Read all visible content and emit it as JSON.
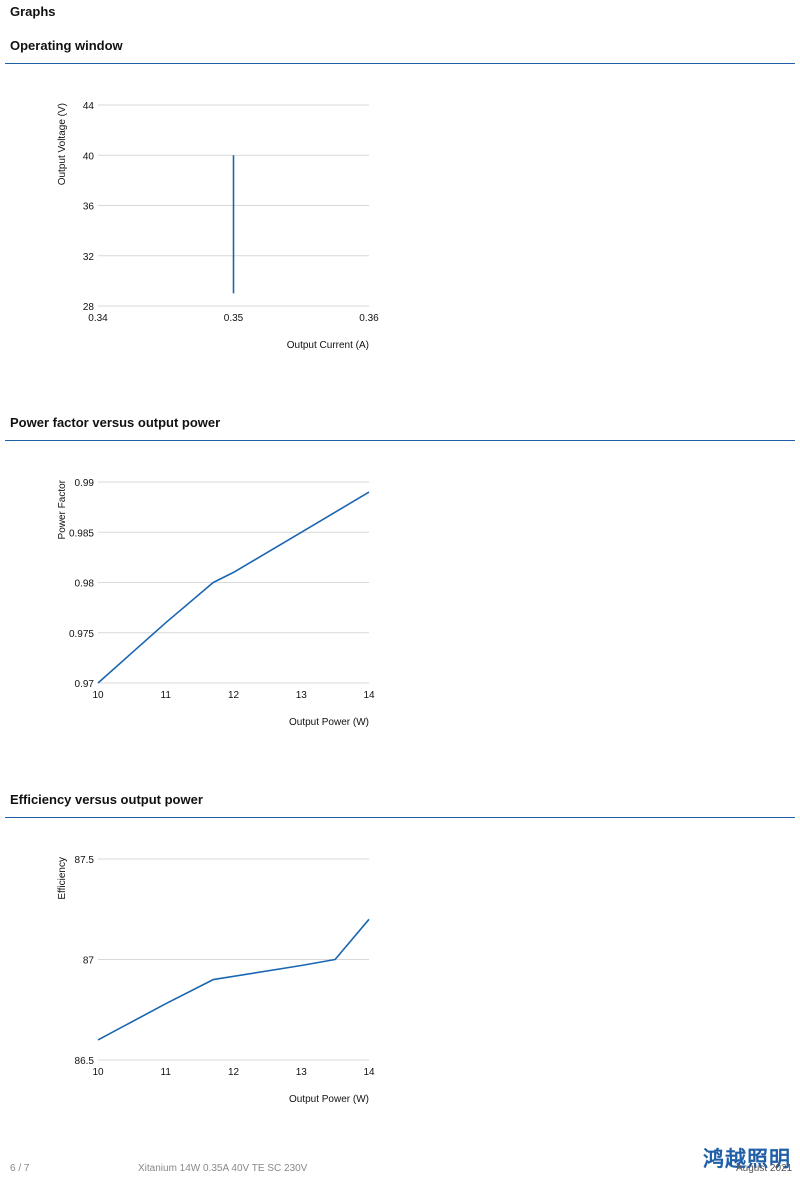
{
  "page": {
    "heading": "Graphs",
    "footer": {
      "page_number": "6 / 7",
      "product": "Xitanium 14W 0.35A 40V TE SC 230V",
      "date": "August 2021"
    },
    "watermark": "鸿越照明"
  },
  "colors": {
    "accent": "#1f5fa8",
    "series": "#1a66b0",
    "grid": "#d9d9d9"
  },
  "chart_data": [
    {
      "type": "line",
      "section_title": "Operating window",
      "xlabel": "Output Current (A)",
      "ylabel": "Output Voltage (V)",
      "xlim": [
        0.34,
        0.36
      ],
      "ylim": [
        28,
        44
      ],
      "xticks": [
        0.34,
        0.35,
        0.36
      ],
      "yticks": [
        28,
        32,
        36,
        40,
        44
      ],
      "xtick_labels": [
        "0.34",
        "0.35",
        "0.36"
      ],
      "ytick_labels": [
        "28",
        "32",
        "36",
        "40",
        "44"
      ],
      "grid": true,
      "series": [
        {
          "x": [
            0.35,
            0.35
          ],
          "y": [
            29,
            40
          ]
        }
      ]
    },
    {
      "type": "line",
      "section_title": "Power factor versus output power",
      "xlabel": "Output Power (W)",
      "ylabel": "Power Factor",
      "xlim": [
        10,
        14
      ],
      "ylim": [
        0.97,
        0.99
      ],
      "xticks": [
        10,
        11,
        12,
        13,
        14
      ],
      "yticks": [
        0.97,
        0.975,
        0.98,
        0.985,
        0.99
      ],
      "xtick_labels": [
        "10",
        "11",
        "12",
        "13",
        "14"
      ],
      "ytick_labels": [
        "0.97",
        "0.975",
        "0.98",
        "0.985",
        "0.99"
      ],
      "grid": true,
      "series": [
        {
          "x": [
            10,
            10.5,
            11,
            11.7,
            12,
            13,
            14
          ],
          "y": [
            0.97,
            0.973,
            0.976,
            0.98,
            0.981,
            0.985,
            0.989
          ]
        }
      ]
    },
    {
      "type": "line",
      "section_title": "Efficiency versus output power",
      "xlabel": "Output Power (W)",
      "ylabel": "Efficiency",
      "xlim": [
        10,
        14
      ],
      "ylim": [
        86.5,
        87.5
      ],
      "xticks": [
        10,
        11,
        12,
        13,
        14
      ],
      "yticks": [
        86.5,
        87,
        87.5
      ],
      "xtick_labels": [
        "10",
        "11",
        "12",
        "13",
        "14"
      ],
      "ytick_labels": [
        "86.5",
        "87",
        "87.5"
      ],
      "grid": true,
      "series": [
        {
          "x": [
            10,
            11,
            11.7,
            13,
            13.5,
            14
          ],
          "y": [
            86.6,
            86.78,
            86.9,
            86.97,
            87.0,
            87.2
          ]
        }
      ]
    }
  ]
}
